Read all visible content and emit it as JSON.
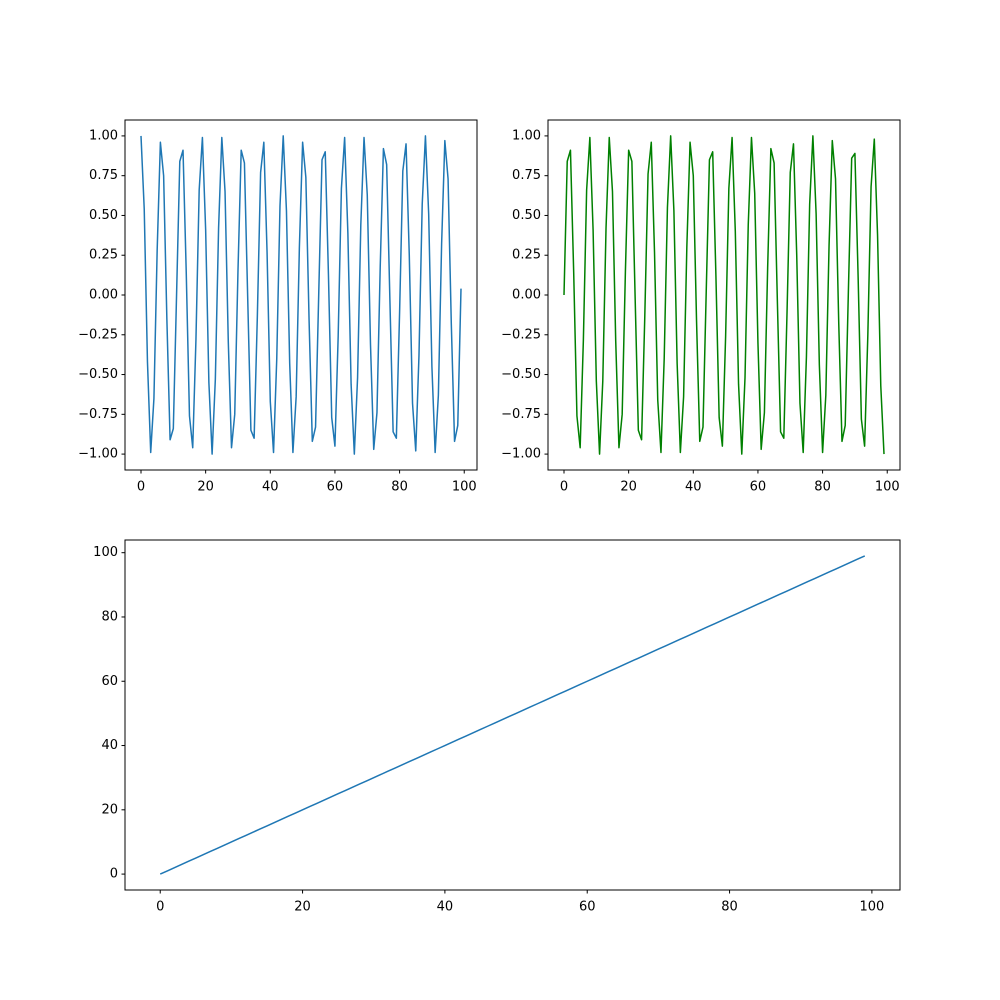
{
  "chart_data": [
    {
      "type": "line",
      "x": [
        0,
        1,
        2,
        3,
        4,
        5,
        6,
        7,
        8,
        9,
        10,
        11,
        12,
        13,
        14,
        15,
        16,
        17,
        18,
        19,
        20,
        21,
        22,
        23,
        24,
        25,
        26,
        27,
        28,
        29,
        30,
        31,
        32,
        33,
        34,
        35,
        36,
        37,
        38,
        39,
        40,
        41,
        42,
        43,
        44,
        45,
        46,
        47,
        48,
        49,
        50,
        51,
        52,
        53,
        54,
        55,
        56,
        57,
        58,
        59,
        60,
        61,
        62,
        63,
        64,
        65,
        66,
        67,
        68,
        69,
        70,
        71,
        72,
        73,
        74,
        75,
        76,
        77,
        78,
        79,
        80,
        81,
        82,
        83,
        84,
        85,
        86,
        87,
        88,
        89,
        90,
        91,
        92,
        93,
        94,
        95,
        96,
        97,
        98,
        99
      ],
      "values": [
        1,
        0.54,
        -0.42,
        -0.99,
        -0.65,
        0.28,
        0.96,
        0.75,
        -0.15,
        -0.91,
        -0.84,
        0.0,
        0.84,
        0.91,
        0.14,
        -0.76,
        -0.96,
        -0.28,
        0.66,
        0.99,
        0.41,
        -0.55,
        -1.0,
        -0.53,
        0.42,
        0.99,
        0.65,
        -0.29,
        -0.96,
        -0.75,
        0.15,
        0.91,
        0.83,
        -0.01,
        -0.85,
        -0.9,
        -0.13,
        0.77,
        0.96,
        0.27,
        -0.67,
        -0.99,
        -0.4,
        0.56,
        1.0,
        0.53,
        -0.43,
        -0.99,
        -0.64,
        0.3,
        0.96,
        0.74,
        -0.16,
        -0.92,
        -0.83,
        0.02,
        0.85,
        0.9,
        0.12,
        -0.77,
        -0.95,
        -0.26,
        0.67,
        0.99,
        0.39,
        -0.56,
        -1.0,
        -0.52,
        0.44,
        0.99,
        0.63,
        -0.31,
        -0.97,
        -0.74,
        0.17,
        0.92,
        0.82,
        -0.03,
        -0.86,
        -0.9,
        -0.11,
        0.78,
        0.95,
        0.25,
        -0.68,
        -0.98,
        -0.38,
        0.57,
        1.0,
        0.51,
        -0.45,
        -0.99,
        -0.63,
        0.32,
        0.97,
        0.73,
        -0.18,
        -0.92,
        -0.82,
        0.04
      ],
      "color": "#1f77b4",
      "xlim": [
        -4.95,
        103.95
      ],
      "xticks": [
        0,
        20,
        40,
        60,
        80,
        100
      ],
      "ylim": [
        -1.1,
        1.1
      ],
      "yticks": [
        {
          "value": -1,
          "label": "−1.00"
        },
        {
          "value": -0.75,
          "label": "−0.75"
        },
        {
          "value": -0.5,
          "label": "−0.50"
        },
        {
          "value": -0.25,
          "label": "−0.25"
        },
        {
          "value": 0,
          "label": "0.00"
        },
        {
          "value": 0.25,
          "label": "0.25"
        },
        {
          "value": 0.5,
          "label": "0.50"
        },
        {
          "value": 0.75,
          "label": "0.75"
        },
        {
          "value": 1,
          "label": "1.00"
        }
      ]
    },
    {
      "type": "line",
      "x": [
        0,
        1,
        2,
        3,
        4,
        5,
        6,
        7,
        8,
        9,
        10,
        11,
        12,
        13,
        14,
        15,
        16,
        17,
        18,
        19,
        20,
        21,
        22,
        23,
        24,
        25,
        26,
        27,
        28,
        29,
        30,
        31,
        32,
        33,
        34,
        35,
        36,
        37,
        38,
        39,
        40,
        41,
        42,
        43,
        44,
        45,
        46,
        47,
        48,
        49,
        50,
        51,
        52,
        53,
        54,
        55,
        56,
        57,
        58,
        59,
        60,
        61,
        62,
        63,
        64,
        65,
        66,
        67,
        68,
        69,
        70,
        71,
        72,
        73,
        74,
        75,
        76,
        77,
        78,
        79,
        80,
        81,
        82,
        83,
        84,
        85,
        86,
        87,
        88,
        89,
        90,
        91,
        92,
        93,
        94,
        95,
        96,
        97,
        98,
        99
      ],
      "values": [
        0,
        0.84,
        0.91,
        0.14,
        -0.76,
        -0.96,
        -0.28,
        0.66,
        0.99,
        0.41,
        -0.54,
        -1.0,
        -0.54,
        0.42,
        0.99,
        0.65,
        -0.29,
        -0.96,
        -0.75,
        0.15,
        0.91,
        0.84,
        -0.01,
        -0.85,
        -0.91,
        -0.13,
        0.76,
        0.96,
        0.27,
        -0.66,
        -0.99,
        -0.4,
        0.55,
        1.0,
        0.53,
        -0.43,
        -0.99,
        -0.64,
        0.3,
        0.96,
        0.75,
        -0.16,
        -0.92,
        -0.83,
        0.02,
        0.85,
        0.9,
        0.12,
        -0.77,
        -0.95,
        -0.26,
        0.67,
        0.99,
        0.4,
        -0.56,
        -1.0,
        -0.52,
        0.44,
        0.99,
        0.64,
        -0.3,
        -0.97,
        -0.74,
        0.17,
        0.92,
        0.83,
        -0.03,
        -0.86,
        -0.9,
        -0.11,
        0.77,
        0.95,
        0.25,
        -0.68,
        -0.99,
        -0.39,
        0.57,
        1.0,
        0.51,
        -0.44,
        -0.99,
        -0.63,
        0.31,
        0.97,
        0.73,
        -0.18,
        -0.92,
        -0.82,
        0.04,
        0.86,
        0.89,
        0.11,
        -0.78,
        -0.95,
        -0.25,
        0.68,
        0.98,
        0.38,
        -0.57,
        -1.0
      ],
      "color": "#008000",
      "xlim": [
        -4.95,
        103.95
      ],
      "xticks": [
        0,
        20,
        40,
        60,
        80,
        100
      ],
      "ylim": [
        -1.1,
        1.1
      ],
      "yticks": [
        {
          "value": -1,
          "label": "−1.00"
        },
        {
          "value": -0.75,
          "label": "−0.75"
        },
        {
          "value": -0.5,
          "label": "−0.50"
        },
        {
          "value": -0.25,
          "label": "−0.25"
        },
        {
          "value": 0,
          "label": "0.00"
        },
        {
          "value": 0.25,
          "label": "0.25"
        },
        {
          "value": 0.5,
          "label": "0.50"
        },
        {
          "value": 0.75,
          "label": "0.75"
        },
        {
          "value": 1,
          "label": "1.00"
        }
      ]
    },
    {
      "type": "line",
      "x": [
        0,
        1,
        2,
        3,
        4,
        5,
        6,
        7,
        8,
        9,
        10,
        11,
        12,
        13,
        14,
        15,
        16,
        17,
        18,
        19,
        20,
        21,
        22,
        23,
        24,
        25,
        26,
        27,
        28,
        29,
        30,
        31,
        32,
        33,
        34,
        35,
        36,
        37,
        38,
        39,
        40,
        41,
        42,
        43,
        44,
        45,
        46,
        47,
        48,
        49,
        50,
        51,
        52,
        53,
        54,
        55,
        56,
        57,
        58,
        59,
        60,
        61,
        62,
        63,
        64,
        65,
        66,
        67,
        68,
        69,
        70,
        71,
        72,
        73,
        74,
        75,
        76,
        77,
        78,
        79,
        80,
        81,
        82,
        83,
        84,
        85,
        86,
        87,
        88,
        89,
        90,
        91,
        92,
        93,
        94,
        95,
        96,
        97,
        98,
        99
      ],
      "values": [
        0,
        1,
        2,
        3,
        4,
        5,
        6,
        7,
        8,
        9,
        10,
        11,
        12,
        13,
        14,
        15,
        16,
        17,
        18,
        19,
        20,
        21,
        22,
        23,
        24,
        25,
        26,
        27,
        28,
        29,
        30,
        31,
        32,
        33,
        34,
        35,
        36,
        37,
        38,
        39,
        40,
        41,
        42,
        43,
        44,
        45,
        46,
        47,
        48,
        49,
        50,
        51,
        52,
        53,
        54,
        55,
        56,
        57,
        58,
        59,
        60,
        61,
        62,
        63,
        64,
        65,
        66,
        67,
        68,
        69,
        70,
        71,
        72,
        73,
        74,
        75,
        76,
        77,
        78,
        79,
        80,
        81,
        82,
        83,
        84,
        85,
        86,
        87,
        88,
        89,
        90,
        91,
        92,
        93,
        94,
        95,
        96,
        97,
        98,
        99
      ],
      "color": "#1f77b4",
      "xlim": [
        -4.95,
        103.95
      ],
      "xticks": [
        0,
        20,
        40,
        60,
        80,
        100
      ],
      "ylim": [
        -4.95,
        103.95
      ],
      "yticks": [
        0,
        20,
        40,
        60,
        80,
        100
      ]
    }
  ]
}
